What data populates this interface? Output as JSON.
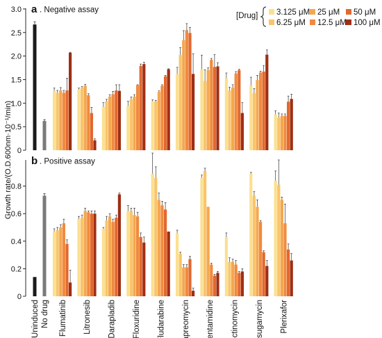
{
  "chart_data": {
    "type": "bar",
    "ylabel": "Growth rate/(O.D.600nm·10⁻¹/min)",
    "categories": [
      "Uninduced",
      "No drug",
      "Flumatinib",
      "Litronesib",
      "Darapladib",
      "Floxuridine",
      "Fludarabine",
      "Capreomycin",
      "Pentamidine",
      "Spectinomycin",
      "Kasugamycin",
      "Plerixafor"
    ],
    "legend": {
      "title": "[Drug]",
      "placement": "top-right",
      "entries": [
        {
          "label": "3.125 μM",
          "color": "#fbe08f"
        },
        {
          "label": "25 μM",
          "color": "#f4a74f"
        },
        {
          "label": "50 μM",
          "color": "#e2682e"
        },
        {
          "label": "6.25 μM",
          "color": "#f9c46b"
        },
        {
          "label": "12.5 μM",
          "color": "#f08a3e"
        },
        {
          "label": "100 μM",
          "color": "#9e2f14"
        }
      ]
    },
    "drug_colors": [
      "#fbe08f",
      "#f9c46b",
      "#f4a74f",
      "#f08a3e",
      "#e2682e",
      "#9e2f14"
    ],
    "control_colors": {
      "Uninduced": "#1a1a1a",
      "No drug": "#7a7a7a"
    },
    "panels": [
      {
        "letter": "a",
        "title": "Negative assay",
        "ylim": [
          0,
          3.0
        ],
        "yticks": [
          "0",
          "0.5",
          "1.0",
          "1.5",
          "2.0",
          "2.5",
          "3.0"
        ],
        "controls": {
          "Uninduced": {
            "value": 2.67,
            "err": 0.06
          },
          "No drug": {
            "value": 0.62,
            "err": 0.03
          }
        },
        "drugs": {
          "Flumatinib": {
            "values": [
              1.26,
              1.22,
              1.27,
              1.22,
              1.27,
              2.07
            ],
            "errors": [
              0.06,
              0.05,
              0.06,
              0.05,
              0.26,
              0.01
            ]
          },
          "Litronesib": {
            "values": [
              1.29,
              1.33,
              1.37,
              1.17,
              0.79,
              0.21
            ],
            "errors": [
              0.03,
              0.02,
              0.03,
              0.03,
              0.12,
              0.03
            ]
          },
          "Darapladib": {
            "values": [
              0.92,
              1.04,
              1.14,
              1.19,
              1.27,
              1.26
            ],
            "errors": [
              0.09,
              0.04,
              0.04,
              0.06,
              0.12,
              0.13
            ]
          },
          "Floxuridine": {
            "values": [
              0.94,
              1.08,
              1.14,
              1.38,
              1.79,
              1.83
            ],
            "errors": [
              0.1,
              0.05,
              0.04,
              0.01,
              0.04,
              0.04
            ]
          },
          "Fludarabine": {
            "values": [
              1.04,
              1.04,
              1.24,
              1.37,
              1.57,
              1.72
            ],
            "errors": [
              0.03,
              0.02,
              0.02,
              0.02,
              0.02,
              0.01
            ]
          },
          "Capreomycin": {
            "values": [
              1.62,
              2.02,
              2.34,
              2.55,
              2.49,
              1.62
            ],
            "errors": [
              0.14,
              0.16,
              0.2,
              0.14,
              0.12,
              0.43
            ]
          },
          "Pentamidine": {
            "values": [
              1.72,
              1.47,
              1.7,
              1.92,
              1.77,
              1.78
            ],
            "errors": [
              0.3,
              0.24,
              0.05,
              0.03,
              0.26,
              0.08
            ]
          },
          "Spectinomycin": {
            "values": [
              1.53,
              1.27,
              1.33,
              1.63,
              1.7,
              0.79
            ],
            "errors": [
              0.11,
              0.07,
              0.06,
              0.04,
              0.02,
              0.22
            ]
          },
          "Kasugamycin": {
            "values": [
              1.38,
              1.21,
              1.49,
              1.65,
              1.67,
              2.03
            ],
            "errors": [
              0.17,
              0.1,
              0.1,
              0.03,
              0.13,
              0.1
            ]
          },
          "Plerixafor": {
            "values": [
              0.76,
              0.69,
              0.73,
              0.73,
              1.03,
              1.09
            ],
            "errors": [
              0.08,
              0.1,
              0.04,
              0.04,
              0.12,
              0.1
            ]
          }
        }
      },
      {
        "letter": "b",
        "title": "Positive assay",
        "ylim": [
          0,
          1.0
        ],
        "yticks": [
          "0",
          "0.2",
          "0.4",
          "0.6",
          "0.8"
        ],
        "controls": {
          "Uninduced": {
            "value": 0.14,
            "err": 0.0
          },
          "No drug": {
            "value": 0.73,
            "err": 0.015
          }
        },
        "drugs": {
          "Flumatinib": {
            "values": [
              0.47,
              0.48,
              0.5,
              0.53,
              0.38,
              0.1
            ],
            "errors": [
              0.02,
              0.02,
              0.02,
              0.03,
              0.03,
              0.09
            ]
          },
          "Litronesib": {
            "values": [
              0.56,
              0.57,
              0.62,
              0.61,
              0.6,
              0.6
            ],
            "errors": [
              0.02,
              0.02,
              0.02,
              0.01,
              0.02,
              0.02
            ]
          },
          "Darapladib": {
            "values": [
              0.49,
              0.55,
              0.58,
              0.54,
              0.57,
              0.74
            ],
            "errors": [
              0.01,
              0.03,
              0.02,
              0.02,
              0.02,
              0.01
            ]
          },
          "Floxuridine": {
            "values": [
              0.62,
              0.62,
              0.59,
              0.58,
              0.43,
              0.39
            ],
            "errors": [
              0.04,
              0.02,
              0.05,
              0.03,
              0.03,
              0.04
            ]
          },
          "Fludarabine": {
            "values": [
              0.89,
              0.86,
              0.7,
              0.66,
              0.63,
              0.47
            ],
            "errors": [
              0.15,
              0.08,
              0.05,
              0.03,
              0.05,
              0.0
            ]
          },
          "Capreomycin": {
            "values": [
              0.46,
              0.31,
              0.21,
              0.21,
              0.27,
              0.04
            ],
            "errors": [
              0.02,
              0.01,
              0.02,
              0.02,
              0.02,
              0.02
            ]
          },
          "Pentamidine": {
            "values": [
              0.86,
              0.91,
              0.65,
              0.23,
              0.15,
              0.17
            ],
            "errors": [
              0.02,
              0.02,
              0.0,
              0.01,
              0.01,
              0.01
            ]
          },
          "Spectinomycin": {
            "values": [
              0.43,
              0.25,
              0.25,
              0.23,
              0.17,
              0.18
            ],
            "errors": [
              0.03,
              0.03,
              0.02,
              0.03,
              0.01,
              0.02
            ]
          },
          "Kasugamycin": {
            "values": [
              0.89,
              0.73,
              0.65,
              0.54,
              0.32,
              0.22
            ],
            "errors": [
              0.01,
              0.03,
              0.05,
              0.01,
              0.01,
              0.04
            ]
          },
          "Plerixafor": {
            "values": [
              0.84,
              0.81,
              0.7,
              0.53,
              0.34,
              0.26
            ],
            "errors": [
              0.07,
              0.18,
              0.02,
              0.14,
              0.04,
              0.05
            ]
          }
        }
      }
    ]
  }
}
